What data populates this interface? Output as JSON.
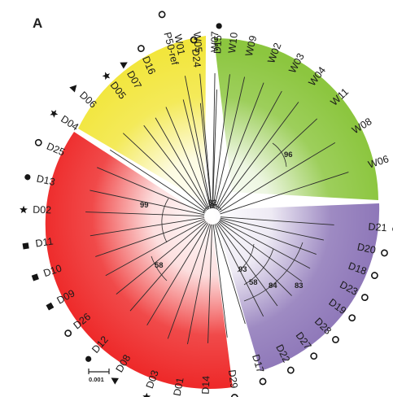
{
  "panel_label": "A",
  "scale_label": "0.001",
  "bootstrap": [
    "82",
    "96",
    "99",
    "58",
    "93",
    "58",
    "84",
    "83"
  ],
  "colors": {
    "W": "#8cc63f",
    "P": "#f2e63c",
    "D": "#ee2a2a",
    "V": "#8d76b8",
    "marker": "#151515"
  },
  "leaves": [
    {
      "label": "W01",
      "marker": "none"
    },
    {
      "label": "W05",
      "marker": "none"
    },
    {
      "label": "W07",
      "marker": "none"
    },
    {
      "label": "W10",
      "marker": "none"
    },
    {
      "label": "W09",
      "marker": "none"
    },
    {
      "label": "W02",
      "marker": "none"
    },
    {
      "label": "W03",
      "marker": "none"
    },
    {
      "label": "W04",
      "marker": "none"
    },
    {
      "label": "W11",
      "marker": "none"
    },
    {
      "label": "W08",
      "marker": "none"
    },
    {
      "label": "W06",
      "marker": "none"
    },
    {
      "label": "D21",
      "marker": "circle-open"
    },
    {
      "label": "D20",
      "marker": "circle-open"
    },
    {
      "label": "D18",
      "marker": "circle-open"
    },
    {
      "label": "D23",
      "marker": "circle-open"
    },
    {
      "label": "D19",
      "marker": "circle-open"
    },
    {
      "label": "D28",
      "marker": "circle-open"
    },
    {
      "label": "D27",
      "marker": "circle-open"
    },
    {
      "label": "D22",
      "marker": "circle-open"
    },
    {
      "label": "D17",
      "marker": "circle-open"
    },
    {
      "label": "D29",
      "marker": "circle-open"
    },
    {
      "label": "D14",
      "marker": "circle-filled"
    },
    {
      "label": "D01",
      "marker": "star"
    },
    {
      "label": "D03",
      "marker": "star"
    },
    {
      "label": "D08",
      "marker": "triangle"
    },
    {
      "label": "D12",
      "marker": "circle-filled"
    },
    {
      "label": "D26",
      "marker": "circle-open"
    },
    {
      "label": "D09",
      "marker": "square"
    },
    {
      "label": "D10",
      "marker": "square"
    },
    {
      "label": "D11",
      "marker": "square"
    },
    {
      "label": "D02",
      "marker": "star"
    },
    {
      "label": "D13",
      "marker": "circle-filled"
    },
    {
      "label": "D25",
      "marker": "circle-open"
    },
    {
      "label": "D04",
      "marker": "star"
    },
    {
      "label": "D06",
      "marker": "triangle"
    },
    {
      "label": "D05",
      "marker": "star"
    },
    {
      "label": "D07",
      "marker": "triangle"
    },
    {
      "label": "D16",
      "marker": "circle-open"
    },
    {
      "label": "P50-ref",
      "marker": "circle-open"
    },
    {
      "label": "D24",
      "marker": "circle-open"
    },
    {
      "label": "D15",
      "marker": "circle-filled"
    }
  ]
}
